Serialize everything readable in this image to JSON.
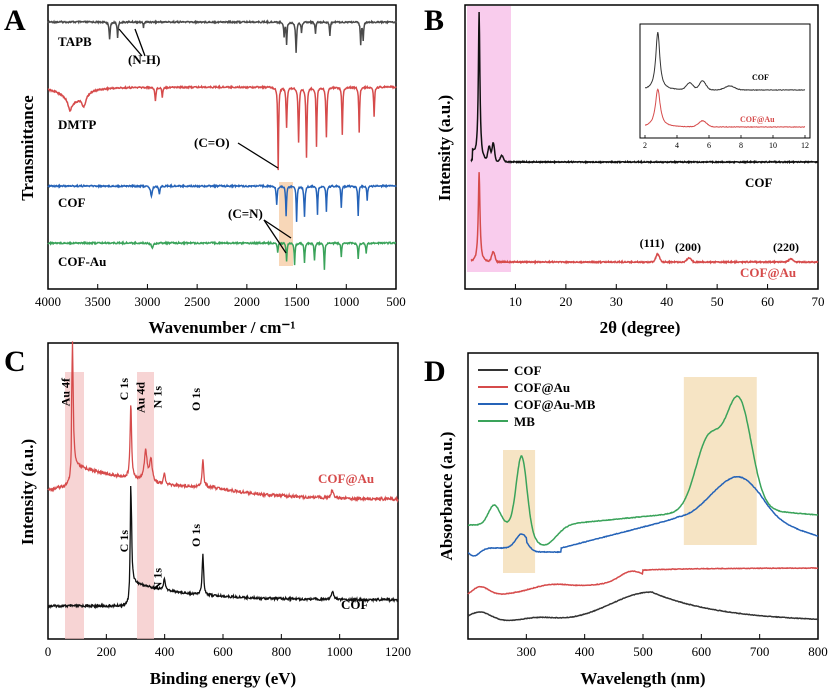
{
  "chart_data": [
    {
      "panel": "A",
      "type": "line",
      "xlabel": "Wavenumber / cm⁻¹",
      "ylabel": "Transmittance",
      "xlim": [
        4000,
        500
      ],
      "xticks": [
        4000,
        3500,
        3000,
        2500,
        2000,
        1500,
        1000,
        500
      ],
      "series": [
        {
          "name": "TAPB",
          "color": "#4a4a4a"
        },
        {
          "name": "DMTP",
          "color": "#d64b4b"
        },
        {
          "name": "COF",
          "color": "#2563b8"
        },
        {
          "name": "COF-Au",
          "color": "#3aa35a"
        }
      ],
      "annotations": [
        "(N-H)",
        "(C=O)",
        "(C=N)"
      ]
    },
    {
      "panel": "B",
      "type": "line",
      "xlabel": "2θ (degree)",
      "ylabel": "Intensity (a.u.)",
      "xlim": [
        0,
        70
      ],
      "xticks": [
        10,
        20,
        30,
        40,
        50,
        60,
        70
      ],
      "series": [
        {
          "name": "COF",
          "color": "#111111",
          "peaks": [
            2.8,
            4.8,
            5.6,
            7.3
          ]
        },
        {
          "name": "COF@Au",
          "color": "#d64b4b",
          "peaks": [
            2.8,
            5.6,
            38.2,
            44.4,
            64.6
          ]
        }
      ],
      "peak_labels": [
        {
          "label": "(111)",
          "x": 38.2
        },
        {
          "label": "(200)",
          "x": 44.4
        },
        {
          "label": "(220)",
          "x": 64.6
        }
      ],
      "inset": {
        "xlim": [
          2,
          12
        ],
        "xticks": [
          2,
          4,
          6,
          8,
          10,
          12
        ],
        "labels": [
          "COF",
          "COF@Au"
        ]
      }
    },
    {
      "panel": "C",
      "type": "line",
      "xlabel": "Binding energy (eV)",
      "ylabel": "Intensity (a.u.)",
      "xlim": [
        0,
        1200
      ],
      "xticks": [
        0,
        200,
        400,
        600,
        800,
        1000,
        1200
      ],
      "series": [
        {
          "name": "COF@Au",
          "color": "#d64b4b"
        },
        {
          "name": "COF",
          "color": "#111111"
        }
      ],
      "peak_labels": [
        {
          "label": "Au 4f",
          "x": 84
        },
        {
          "label": "C 1s",
          "x": 284
        },
        {
          "label": "Au 4d",
          "x": 335
        },
        {
          "label": "N 1s",
          "x": 399
        },
        {
          "label": "O 1s",
          "x": 531
        }
      ]
    },
    {
      "panel": "D",
      "type": "line",
      "xlabel": "Wavelength (nm)",
      "ylabel": "Absorbance (a.u.)",
      "xlim": [
        200,
        800
      ],
      "xticks": [
        300,
        400,
        500,
        600,
        700,
        800
      ],
      "series": [
        {
          "name": "COF",
          "color": "#333333"
        },
        {
          "name": "COF@Au",
          "color": "#d64b4b"
        },
        {
          "name": "COF@Au-MB",
          "color": "#2563b8"
        },
        {
          "name": "MB",
          "color": "#3aa35a"
        }
      ],
      "highlight_bands": [
        [
          260,
          315
        ],
        [
          570,
          695
        ]
      ]
    }
  ]
}
